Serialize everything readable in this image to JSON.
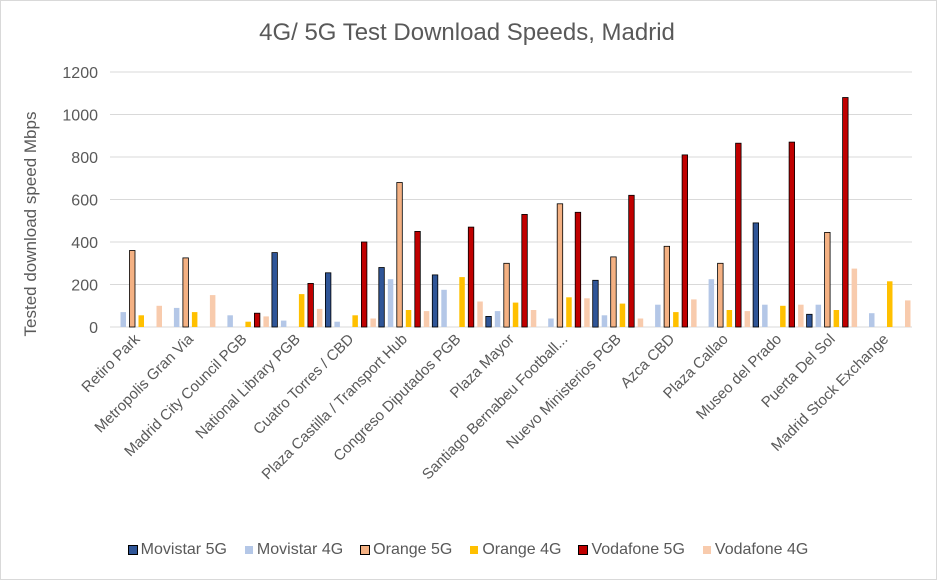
{
  "chart_data": {
    "type": "bar",
    "title": "4G/ 5G Test Download Speeds, Madrid",
    "xlabel": "",
    "ylabel": "Tested download speed Mbps",
    "ylim": [
      0,
      1200
    ],
    "yticks": [
      0,
      200,
      400,
      600,
      800,
      1000,
      1200
    ],
    "grid": true,
    "legend_position": "bottom",
    "categories": [
      "Retiro Park",
      "Metropolis Gran Via",
      "Madrid City Council PGB",
      "National Library PGB",
      "Cuatro Torres / CBD",
      "Plaza Castilla / Transport Hub",
      "Congreso Diputados PGB",
      "Plaza Mayor",
      "Santiago Bernabeu Football...",
      "Nuevo Ministerios PGB",
      "Azca CBD",
      "Plaza Callao",
      "Museo del Prado",
      "Puerta Del Sol",
      "Madrid Stock Exchange"
    ],
    "series": [
      {
        "name": "Movistar 5G",
        "color": "#2F5597",
        "outlined": true,
        "values": [
          0,
          0,
          0,
          350,
          255,
          280,
          245,
          50,
          0,
          220,
          0,
          0,
          490,
          60,
          0
        ]
      },
      {
        "name": "Movistar 4G",
        "color": "#B4C7E7",
        "outlined": false,
        "values": [
          70,
          90,
          55,
          30,
          25,
          225,
          175,
          75,
          40,
          55,
          105,
          225,
          105,
          105,
          65
        ]
      },
      {
        "name": "Orange 5G",
        "color": "#F4B183",
        "outlined": true,
        "values": [
          360,
          325,
          0,
          0,
          0,
          680,
          0,
          300,
          580,
          330,
          380,
          300,
          0,
          445,
          0
        ]
      },
      {
        "name": "Orange 4G",
        "color": "#FFC000",
        "outlined": false,
        "values": [
          55,
          70,
          25,
          155,
          55,
          80,
          235,
          115,
          140,
          110,
          70,
          80,
          100,
          80,
          215
        ]
      },
      {
        "name": "Vodafone 5G",
        "color": "#C00000",
        "outlined": true,
        "values": [
          0,
          0,
          65,
          205,
          400,
          450,
          470,
          530,
          540,
          620,
          810,
          865,
          870,
          1080,
          0
        ]
      },
      {
        "name": "Vodafone 4G",
        "color": "#F8CBAD",
        "outlined": false,
        "values": [
          100,
          150,
          50,
          85,
          40,
          75,
          120,
          80,
          135,
          40,
          130,
          75,
          105,
          275,
          125
        ]
      }
    ]
  }
}
